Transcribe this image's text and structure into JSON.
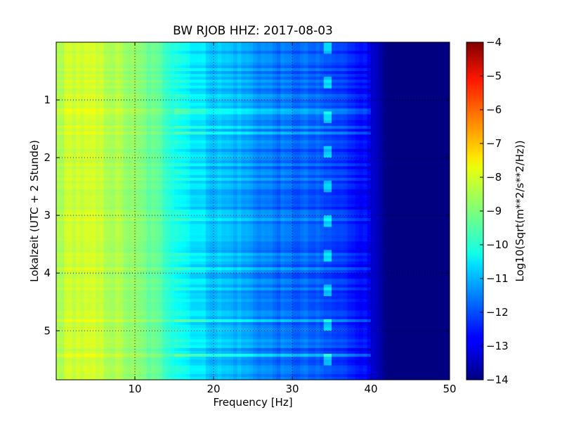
{
  "chart_data": {
    "type": "heatmap",
    "title": "BW RJOB HHZ: 2017-08-03",
    "xlabel": "Frequency [Hz]",
    "ylabel": "Lokalzeit (UTC + 2 Stunde)",
    "xlim": [
      0,
      50
    ],
    "ylim": [
      5.85,
      0
    ],
    "x_ticks": [
      10,
      20,
      30,
      40,
      50
    ],
    "y_ticks": [
      1,
      2,
      3,
      4,
      5
    ],
    "grid": true,
    "colorbar": {
      "label": "Log10(Sqrt(m**2/s**2/Hz))",
      "min": -14,
      "max": -4,
      "ticks": [
        -4,
        -5,
        -6,
        -7,
        -8,
        -9,
        -10,
        -11,
        -12,
        -13,
        -14
      ],
      "colormap": "jet"
    },
    "profile": {
      "frequency_hz": [
        0,
        2,
        5,
        8,
        10,
        13,
        16,
        18,
        20,
        23,
        26,
        29,
        32,
        35,
        38,
        39.5,
        40.5,
        41.5,
        42,
        50
      ],
      "log_psd": [
        -8.6,
        -8.2,
        -8.3,
        -8.6,
        -8.9,
        -9.4,
        -10.1,
        -10.5,
        -10.8,
        -11.0,
        -11.4,
        -11.7,
        -11.8,
        -12.1,
        -12.4,
        -12.8,
        -13.3,
        -13.7,
        -14.0,
        -14.0
      ]
    },
    "line_features": [
      {
        "frequency_hz": 34.5,
        "note": "narrow-band line"
      }
    ]
  }
}
